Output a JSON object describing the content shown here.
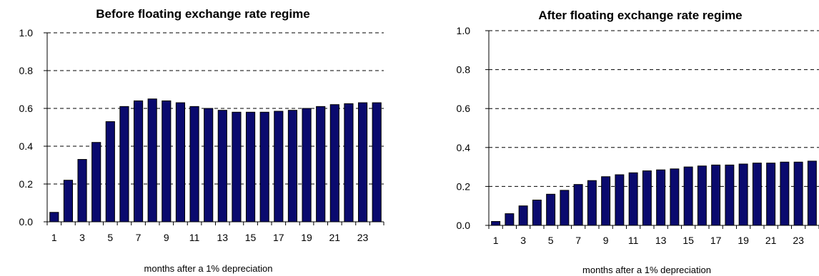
{
  "chart_data": [
    {
      "type": "bar",
      "title": "Before floating exchange rate regime",
      "xlabel": "months after a 1% depreciation",
      "ylabel": "",
      "ylim": [
        0,
        1.0
      ],
      "yticks": [
        "0.0",
        "0.2",
        "0.4",
        "0.6",
        "0.8",
        "1.0"
      ],
      "xticks": [
        "1",
        "3",
        "5",
        "7",
        "9",
        "11",
        "13",
        "15",
        "17",
        "19",
        "21",
        "23"
      ],
      "grid": "horizontal dashed",
      "bar_color": "#0a0a6e",
      "categories": [
        1,
        2,
        3,
        4,
        5,
        6,
        7,
        8,
        9,
        10,
        11,
        12,
        13,
        14,
        15,
        16,
        17,
        18,
        19,
        20,
        21,
        22,
        23,
        24
      ],
      "values": [
        0.05,
        0.22,
        0.33,
        0.42,
        0.53,
        0.61,
        0.64,
        0.65,
        0.64,
        0.63,
        0.61,
        0.6,
        0.59,
        0.58,
        0.58,
        0.58,
        0.585,
        0.59,
        0.6,
        0.61,
        0.62,
        0.625,
        0.63,
        0.63
      ]
    },
    {
      "type": "bar",
      "title": "After floating exchange rate regime",
      "xlabel": "months after a 1% depreciation",
      "ylabel": "",
      "ylim": [
        0,
        1.0
      ],
      "yticks": [
        "0.0",
        "0.2",
        "0.4",
        "0.6",
        "0.8",
        "1.0"
      ],
      "xticks": [
        "1",
        "3",
        "5",
        "7",
        "9",
        "11",
        "13",
        "15",
        "17",
        "19",
        "21",
        "23"
      ],
      "grid": "horizontal dashed",
      "bar_color": "#0a0a6e",
      "categories": [
        1,
        2,
        3,
        4,
        5,
        6,
        7,
        8,
        9,
        10,
        11,
        12,
        13,
        14,
        15,
        16,
        17,
        18,
        19,
        20,
        21,
        22,
        23,
        24
      ],
      "values": [
        0.02,
        0.06,
        0.1,
        0.13,
        0.16,
        0.18,
        0.21,
        0.23,
        0.25,
        0.26,
        0.27,
        0.28,
        0.285,
        0.29,
        0.3,
        0.305,
        0.31,
        0.31,
        0.315,
        0.32,
        0.32,
        0.325,
        0.325,
        0.33
      ]
    }
  ]
}
